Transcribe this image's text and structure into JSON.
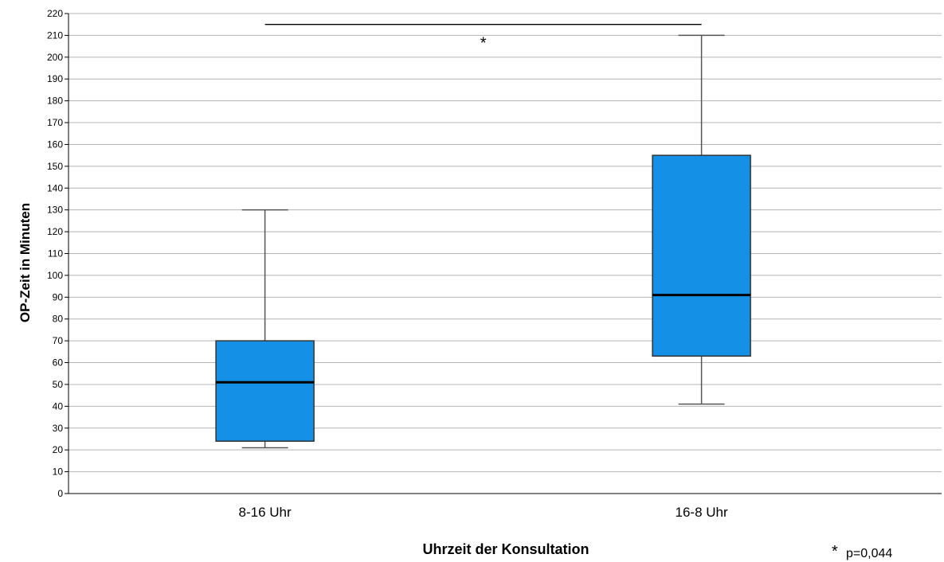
{
  "chart_data": {
    "type": "boxplot",
    "xlabel": "Uhrzeit der Konsultation",
    "ylabel": "OP-Zeit in Minuten",
    "ylim": [
      0,
      220
    ],
    "yticks": [
      0,
      10,
      20,
      30,
      40,
      50,
      60,
      70,
      80,
      90,
      100,
      110,
      120,
      130,
      140,
      150,
      160,
      170,
      180,
      190,
      200,
      210,
      220
    ],
    "grid": true,
    "box_color": "#1490e6",
    "categories": [
      "8-16 Uhr",
      "16-8 Uhr"
    ],
    "boxes": [
      {
        "category": "8-16 Uhr",
        "min": 21,
        "q1": 24,
        "median": 51,
        "q3": 70,
        "max": 130
      },
      {
        "category": "16-8 Uhr",
        "min": 41,
        "q1": 63,
        "median": 91,
        "q3": 155,
        "max": 210
      }
    ],
    "significance": {
      "y": 215,
      "marker": "*"
    },
    "note": {
      "marker": "*",
      "text": "p=0,044"
    }
  }
}
